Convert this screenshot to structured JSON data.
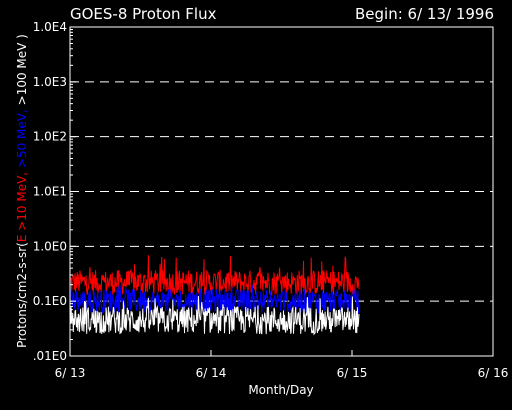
{
  "chart_data": {
    "type": "line",
    "title": "GOES-8 Proton Flux",
    "subtitle": "Begin: 6/ 13/ 1996",
    "xlabel": "Month/Day",
    "ylabel_parts": [
      {
        "text": "Protons/cm2-s-sr(",
        "color": "#ffffff"
      },
      {
        "text": "E >10 MeV,",
        "color": "#ff0000"
      },
      {
        "text": " >50 MeV,",
        "color": "#0000ff"
      },
      {
        "text": " >100 MeV )",
        "color": "#ffffff"
      }
    ],
    "yscale": "log",
    "ylim": [
      0.01,
      10000
    ],
    "xlim": [
      0,
      3
    ],
    "x_ticks": [
      {
        "value": 0,
        "label": "6/ 13"
      },
      {
        "value": 1,
        "label": "6/ 14"
      },
      {
        "value": 2,
        "label": "6/ 15"
      },
      {
        "value": 3,
        "label": "6/ 16"
      }
    ],
    "y_ticks": [
      {
        "value": 0.01,
        "label": ".01E0"
      },
      {
        "value": 0.1,
        "label": "0.1E0"
      },
      {
        "value": 1,
        "label": "1.0E0"
      },
      {
        "value": 10,
        "label": "1.0E1"
      },
      {
        "value": 100,
        "label": "1.0E2"
      },
      {
        "value": 1000,
        "label": "1.0E3"
      },
      {
        "value": 10000,
        "label": "1.0E4"
      }
    ],
    "grid": "dashed horizontal at decades",
    "data_x_end": 2.05,
    "series": [
      {
        "color": "#ff0000",
        "typical": 0.22,
        "min": 0.13,
        "max": 0.7
      },
      {
        "color": "#0000ff",
        "typical": 0.1,
        "min": 0.06,
        "max": 0.2
      },
      {
        "color": "#ffffff",
        "typical": 0.045,
        "min": 0.025,
        "max": 0.13
      }
    ]
  }
}
